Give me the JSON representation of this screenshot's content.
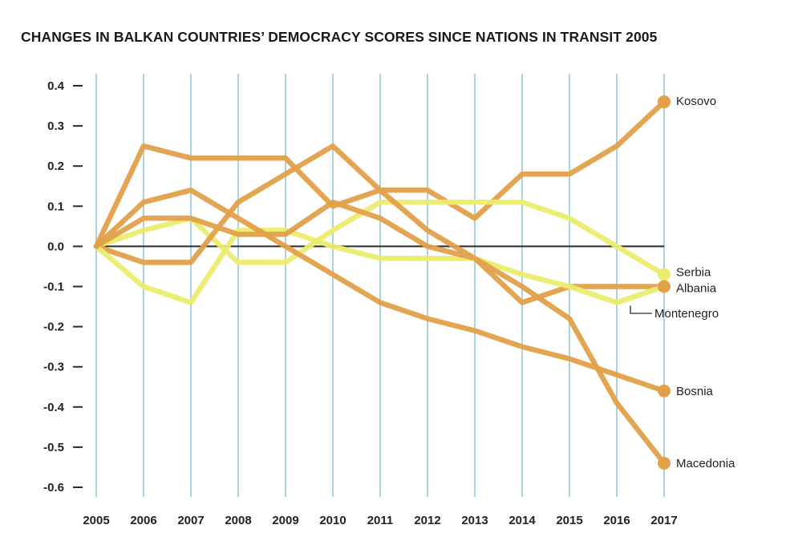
{
  "chart_data": {
    "type": "line",
    "title": "CHANGES IN BALKAN COUNTRIES’ DEMOCRACY SCORES SINCE NATIONS IN TRANSIT 2005",
    "xlabel": "",
    "ylabel": "",
    "x": [
      2005,
      2006,
      2007,
      2008,
      2009,
      2010,
      2011,
      2012,
      2013,
      2014,
      2015,
      2016,
      2017
    ],
    "x_tick_labels": [
      "2005",
      "2006",
      "2007",
      "2008",
      "2009",
      "2010",
      "2011",
      "2012",
      "2013",
      "2014",
      "2015",
      "2016",
      "2017"
    ],
    "y_tick_labels": [
      "0.4",
      "0.3",
      "0.2",
      "0.1",
      "0.0",
      "-0.1",
      "-0.2",
      "-0.3",
      "-0.4",
      "-0.5",
      "-0.6"
    ],
    "y_ticks": [
      0.4,
      0.3,
      0.2,
      0.1,
      0.0,
      -0.1,
      -0.2,
      -0.3,
      -0.4,
      -0.5,
      -0.6
    ],
    "ylim": [
      -0.6,
      0.4
    ],
    "grid": "vertical",
    "series": [
      {
        "name": "Kosovo",
        "color": "#e3a04a",
        "endpoint_marker": true,
        "values": [
          0,
          0.25,
          0.22,
          0.22,
          0.22,
          0.1,
          0.14,
          0.14,
          0.07,
          0.18,
          0.18,
          0.25,
          0.36
        ]
      },
      {
        "name": "Serbia",
        "color": "#eaec6e",
        "endpoint_marker": true,
        "values": [
          0,
          0.04,
          0.07,
          -0.04,
          -0.04,
          0.04,
          0.11,
          0.11,
          0.11,
          0.11,
          0.07,
          0.0,
          -0.07
        ]
      },
      {
        "name": "Albania",
        "color": "#e3a04a",
        "endpoint_marker": true,
        "values": [
          0,
          -0.04,
          -0.04,
          0.11,
          0.18,
          0.25,
          0.14,
          0.04,
          -0.03,
          -0.14,
          -0.1,
          -0.1,
          -0.1
        ]
      },
      {
        "name": "Montenegro",
        "color": "#eaec6e",
        "endpoint_marker": false,
        "leader_line": true,
        "values": [
          0,
          -0.1,
          -0.14,
          0.04,
          0.04,
          0.0,
          -0.03,
          -0.03,
          -0.03,
          -0.07,
          -0.1,
          -0.14,
          -0.1
        ]
      },
      {
        "name": "Bosnia",
        "color": "#e3a04a",
        "endpoint_marker": true,
        "values": [
          0,
          0.11,
          0.14,
          0.07,
          0.0,
          -0.07,
          -0.14,
          -0.18,
          -0.21,
          -0.25,
          -0.28,
          -0.32,
          -0.36
        ]
      },
      {
        "name": "Macedonia",
        "color": "#e3a04a",
        "endpoint_marker": true,
        "values": [
          0,
          0.07,
          0.07,
          0.03,
          0.03,
          0.11,
          0.07,
          0.0,
          -0.03,
          -0.1,
          -0.18,
          -0.39,
          -0.54
        ]
      }
    ],
    "colors": {
      "gridline": "#a9d3de",
      "zero_line": "#2a2a2a",
      "tick": "#2a2a2a",
      "leader": "#2a2a2a"
    }
  }
}
